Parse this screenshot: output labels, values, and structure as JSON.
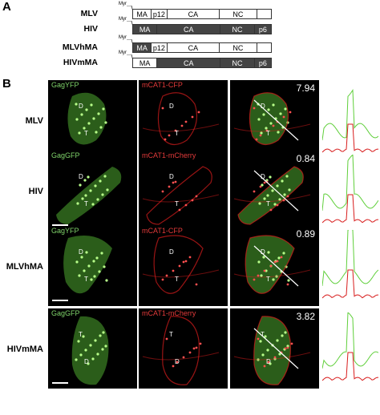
{
  "panel_a": {
    "letter": "A",
    "myr_label": "Myr",
    "constructs": [
      {
        "name": "MLV",
        "segments": [
          {
            "label": "MA",
            "src": "mlv",
            "w": 24
          },
          {
            "label": "p12",
            "src": "mlv",
            "w": 20
          },
          {
            "label": "CA",
            "src": "mlv",
            "w": 68
          },
          {
            "label": "NC",
            "src": "mlv",
            "w": 48
          },
          {
            "label": "",
            "src": "mlv",
            "w": 18
          }
        ]
      },
      {
        "name": "HIV",
        "segments": [
          {
            "label": "MA",
            "src": "hiv",
            "w": 30
          },
          {
            "label": "CA",
            "src": "hiv",
            "w": 78
          },
          {
            "label": "NC",
            "src": "hiv",
            "w": 42
          },
          {
            "label": "p6",
            "src": "hiv",
            "w": 20
          }
        ]
      },
      {
        "name": "MLVhMA",
        "segments": [
          {
            "label": "MA",
            "src": "hiv",
            "w": 24
          },
          {
            "label": "p12",
            "src": "mlv",
            "w": 20
          },
          {
            "label": "CA",
            "src": "mlv",
            "w": 68
          },
          {
            "label": "NC",
            "src": "mlv",
            "w": 48
          },
          {
            "label": "",
            "src": "mlv",
            "w": 18
          }
        ]
      },
      {
        "name": "HIVmMA",
        "segments": [
          {
            "label": "MA",
            "src": "mlv",
            "w": 30
          },
          {
            "label": "CA",
            "src": "hiv",
            "w": 78
          },
          {
            "label": "NC",
            "src": "hiv",
            "w": 42
          },
          {
            "label": "p6",
            "src": "hiv",
            "w": 20
          }
        ]
      }
    ]
  },
  "panel_b": {
    "letter": "B",
    "rows": [
      {
        "label": "MLV",
        "green_label": "GagYFP",
        "red_label": "mCAT1-CFP",
        "ratio": "7.94",
        "marks": [
          "D",
          "T"
        ]
      },
      {
        "label": "HIV",
        "green_label": "GagGFP",
        "red_label": "mCAT1-mCherry",
        "ratio": "0.84",
        "marks": [
          "D",
          "T"
        ]
      },
      {
        "label": "MLVhMA",
        "green_label": "GagYFP",
        "red_label": "mCAT1-CFP",
        "ratio": "0.89",
        "marks": [
          "D",
          "T"
        ]
      },
      {
        "label": "HIVmMA",
        "green_label": "GagGFP",
        "red_label": "mCAT1-mCherry",
        "ratio": "3.82",
        "marks": [
          "T",
          "D"
        ]
      }
    ],
    "colors": {
      "green": "#5fcf3a",
      "red": "#d81c1c",
      "green_text": "#7fd36a",
      "red_text": "#e23a3a"
    }
  }
}
